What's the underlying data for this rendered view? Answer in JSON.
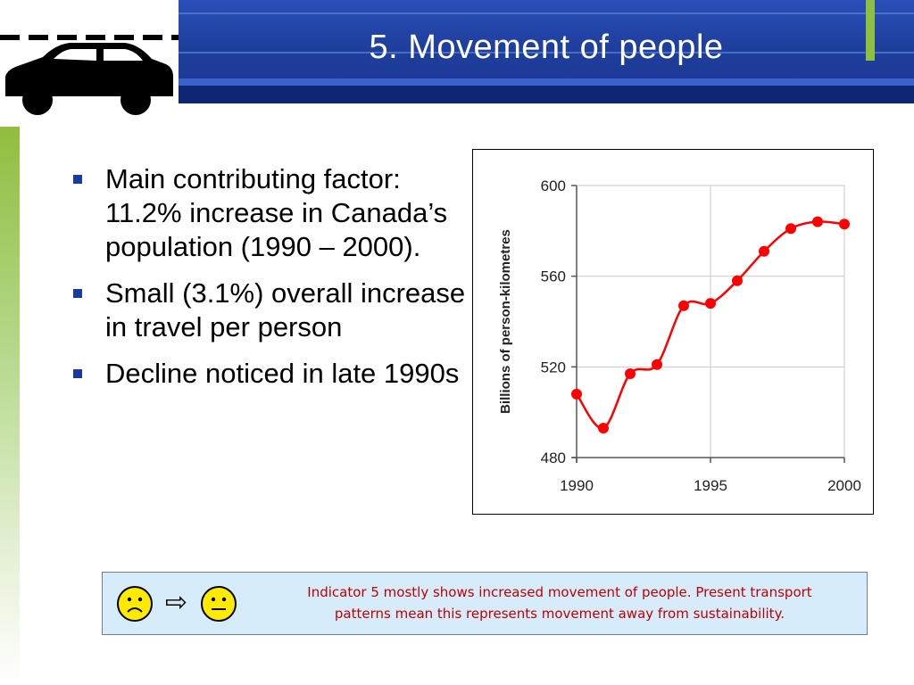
{
  "slide": {
    "title": "5. Movement of people",
    "colors": {
      "header": "#1f3f9e",
      "accent_green": "#8fbf3f",
      "series": "#ff0000",
      "indicator_bg": "#d6ecfb",
      "indicator_text": "#c00000"
    }
  },
  "logo": {
    "icon": "car-icon"
  },
  "bullets": [
    "Main contributing factor: 11.2% increase in Canada’s population (1990 – 2000).",
    "Small (3.1%) overall increase in travel per person",
    "Decline noticed in late 1990s"
  ],
  "chart_data": {
    "type": "line",
    "title": "",
    "xlabel": "",
    "ylabel": "Billions of person-kilometres",
    "x": [
      1990,
      1991,
      1992,
      1993,
      1994,
      1995,
      1996,
      1997,
      1998,
      1999,
      2000
    ],
    "series": [
      {
        "values": [
          508,
          493,
          517,
          521,
          547,
          548,
          558,
          571,
          581,
          584,
          583
        ],
        "color": "#ff0000"
      }
    ],
    "xlim": [
      1990,
      2000
    ],
    "ylim": [
      480,
      600
    ],
    "xticks": [
      "1990",
      "1995",
      "2000"
    ],
    "yticks": [
      "480",
      "520",
      "560",
      "600"
    ],
    "grid": true,
    "legend": "none"
  },
  "indicator": {
    "icons": [
      "sad-face-icon",
      "arrow-right-icon",
      "neutral-face-icon"
    ],
    "text_line1": "Indicator 5 mostly shows increased movement of people. Present transport",
    "text_line2": "patterns mean this represents movement away from sustainability."
  }
}
